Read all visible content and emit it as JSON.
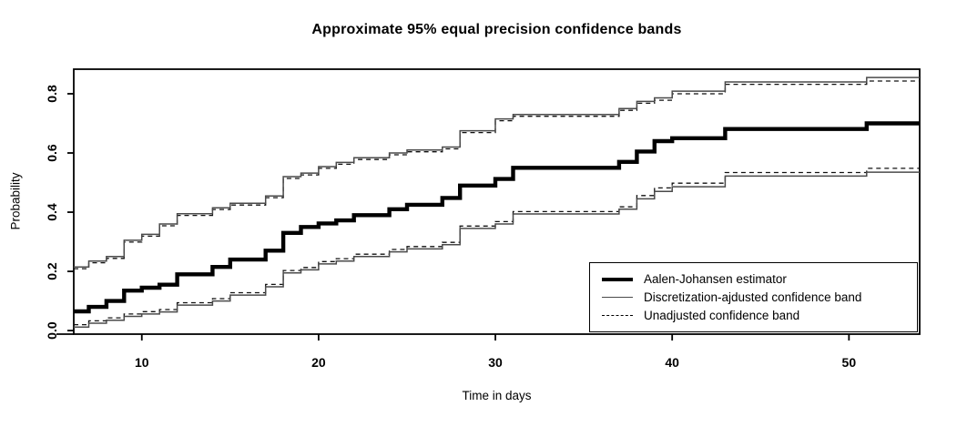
{
  "chart_data": {
    "type": "line",
    "subtype": "step",
    "title": "Approximate 95% equal precision confidence bands",
    "xlabel": "Time in days",
    "ylabel": "Probability",
    "xlim": [
      6.15,
      54.0
    ],
    "ylim": [
      -0.012,
      0.883
    ],
    "x_ticks": [
      10,
      20,
      30,
      40,
      50
    ],
    "y_ticks": [
      0.0,
      0.2,
      0.4,
      0.6,
      0.8
    ],
    "grid": false,
    "legend_position": "bottom-right",
    "legend": {
      "items": [
        {
          "label": "Aalen-Johansen estimator",
          "style": "thick-solid"
        },
        {
          "label": "Discretization-ajdusted confidence band",
          "style": "thin-solid"
        },
        {
          "label": "Unadjusted confidence band",
          "style": "dashed"
        }
      ]
    },
    "event_times": [
      7,
      8,
      9,
      10,
      11,
      12,
      14,
      15,
      17,
      18,
      19,
      20,
      21,
      22,
      24,
      25,
      27,
      28,
      30,
      31,
      37,
      38,
      39,
      40,
      43,
      51
    ],
    "series": [
      {
        "name": "Unadjusted upper band",
        "role": "upper-unadjusted",
        "color": "#111111",
        "width": 1.3,
        "dash": "5 4",
        "start_value": 0.209,
        "values": [
          0.229,
          0.244,
          0.299,
          0.319,
          0.354,
          0.389,
          0.409,
          0.424,
          0.449,
          0.514,
          0.526,
          0.548,
          0.562,
          0.578,
          0.594,
          0.604,
          0.614,
          0.669,
          0.709,
          0.724,
          0.744,
          0.768,
          0.778,
          0.8,
          0.832,
          0.843
        ]
      },
      {
        "name": "Unadjusted lower band",
        "role": "lower-unadjusted",
        "color": "#111111",
        "width": 1.3,
        "dash": "5 4",
        "start_value": 0.02,
        "values": [
          0.033,
          0.043,
          0.056,
          0.064,
          0.071,
          0.094,
          0.108,
          0.128,
          0.156,
          0.203,
          0.213,
          0.233,
          0.243,
          0.258,
          0.274,
          0.284,
          0.298,
          0.353,
          0.368,
          0.402,
          0.418,
          0.456,
          0.482,
          0.498,
          0.534,
          0.548
        ]
      },
      {
        "name": "Discretization-adjusted upper band",
        "role": "upper-adjusted",
        "color": "#4a4a4a",
        "width": 1.5,
        "dash": null,
        "start_value": 0.215,
        "values": [
          0.235,
          0.25,
          0.305,
          0.325,
          0.36,
          0.395,
          0.415,
          0.43,
          0.455,
          0.52,
          0.532,
          0.554,
          0.568,
          0.584,
          0.6,
          0.61,
          0.62,
          0.675,
          0.715,
          0.73,
          0.75,
          0.774,
          0.786,
          0.809,
          0.84,
          0.855
        ]
      },
      {
        "name": "Discretization-adjusted lower band",
        "role": "lower-adjusted",
        "color": "#4a4a4a",
        "width": 1.5,
        "dash": null,
        "start_value": 0.012,
        "values": [
          0.025,
          0.035,
          0.048,
          0.056,
          0.063,
          0.086,
          0.1,
          0.12,
          0.148,
          0.195,
          0.205,
          0.225,
          0.235,
          0.25,
          0.266,
          0.276,
          0.29,
          0.345,
          0.36,
          0.394,
          0.41,
          0.445,
          0.47,
          0.486,
          0.522,
          0.535
        ]
      },
      {
        "name": "Aalen-Johansen estimator",
        "role": "estimator",
        "color": "#000000",
        "width": 4.4,
        "dash": null,
        "start_value": 0.065,
        "values": [
          0.08,
          0.1,
          0.135,
          0.145,
          0.155,
          0.19,
          0.215,
          0.24,
          0.27,
          0.33,
          0.35,
          0.362,
          0.372,
          0.39,
          0.41,
          0.425,
          0.448,
          0.49,
          0.512,
          0.55,
          0.57,
          0.605,
          0.64,
          0.65,
          0.681,
          0.7
        ]
      }
    ]
  }
}
